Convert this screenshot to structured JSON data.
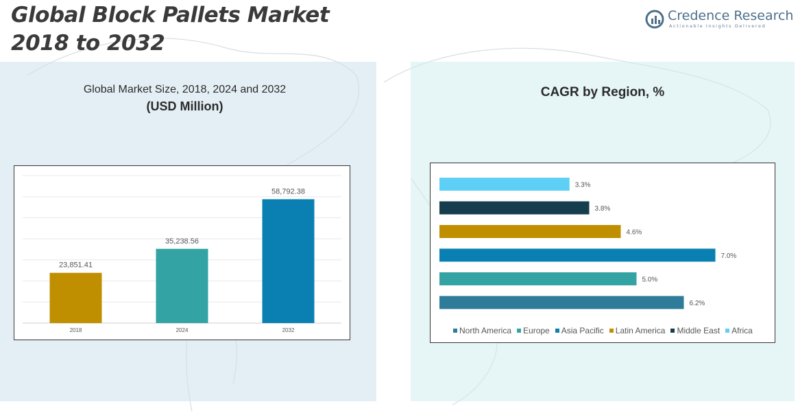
{
  "header": {
    "title": "Global Block Pallets Market\n2018 to 2032",
    "brand_name": "Credence Research",
    "brand_tagline": "Actionable Insights Delivered"
  },
  "left_panel": {
    "subtitle_line1": "Global Market Size, 2018, 2024 and 2032",
    "subtitle_line2": "(USD Million)"
  },
  "right_panel": {
    "title": "CAGR by Region, %"
  },
  "chart_data": [
    {
      "type": "bar",
      "categories": [
        "2018",
        "2024",
        "2032"
      ],
      "values": [
        23851.41,
        35238.56,
        58792.38
      ],
      "value_labels": [
        "23,851.41",
        "35,238.56",
        "58,792.38"
      ],
      "colors": [
        "#bf8f00",
        "#33a3a3",
        "#0a7fb2"
      ],
      "ylim": [
        0,
        70000
      ],
      "grid": true
    },
    {
      "type": "bar",
      "orientation": "horizontal",
      "categories": [
        "North America",
        "Europe",
        "Asia Pacific",
        "Latin America",
        "Middle East",
        "Africa"
      ],
      "values": [
        6.2,
        5.0,
        7.0,
        4.6,
        3.8,
        3.3
      ],
      "value_labels": [
        "6.2%",
        "5.0%",
        "7.0%",
        "4.6%",
        "3.8%",
        "3.3%"
      ],
      "colors": [
        "#2e7c99",
        "#33a3a3",
        "#0a7fb2",
        "#bf8f00",
        "#163d4d",
        "#5fd0f5"
      ],
      "xlim": [
        0,
        7.2
      ],
      "legend": "bottom"
    }
  ]
}
